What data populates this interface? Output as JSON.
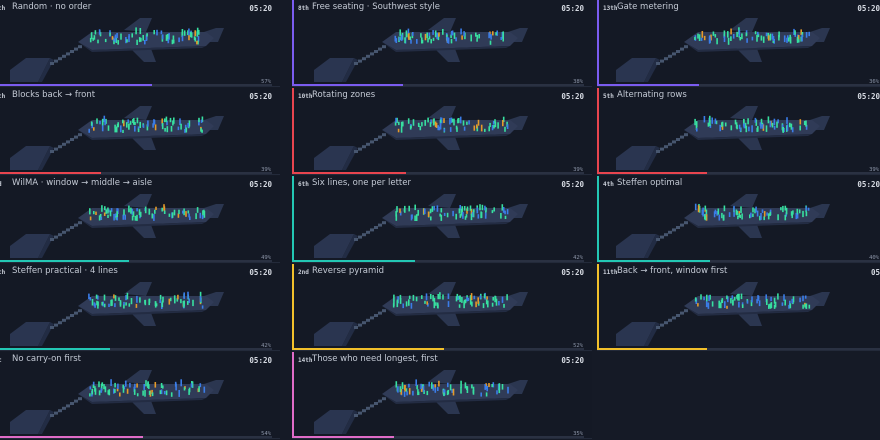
{
  "clock": "05:20",
  "colors": {
    "violet": "#7b5cf0",
    "red": "#e8454f",
    "teal": "#23c7b4",
    "yellow": "#f2c02b",
    "pink": "#e06cc8",
    "passenger_seated": "#37e0a0",
    "passenger_walking": "#3b7de8",
    "passenger_alt": "#e59a2a"
  },
  "panels": [
    {
      "rank": "th",
      "label": "Random · no order",
      "progress_pct": 57,
      "progress_label": "57%",
      "color": "violet"
    },
    {
      "rank": "8th",
      "label": "Free seating · Southwest style",
      "progress_pct": 38,
      "progress_label": "38%",
      "color": "violet"
    },
    {
      "rank": "13th",
      "label": "Gate metering",
      "progress_pct": 36,
      "progress_label": "36%",
      "color": "violet"
    },
    {
      "rank": "th",
      "label": "Blocks back → front",
      "progress_pct": 39,
      "progress_label": "39%",
      "color": "red"
    },
    {
      "rank": "10th",
      "label": "Rotating zones",
      "progress_pct": 39,
      "progress_label": "39%",
      "color": "red"
    },
    {
      "rank": "5th",
      "label": "Alternating rows",
      "progress_pct": 39,
      "progress_label": "39%",
      "color": "red"
    },
    {
      "rank": "d",
      "label": "WilMA · window → middle → aisle",
      "progress_pct": 49,
      "progress_label": "49%",
      "color": "teal"
    },
    {
      "rank": "6th",
      "label": "Six lines, one per letter",
      "progress_pct": 42,
      "progress_label": "42%",
      "color": "teal"
    },
    {
      "rank": "4th",
      "label": "Steffen optimal",
      "progress_pct": 40,
      "progress_label": "40%",
      "color": "teal"
    },
    {
      "rank": "th",
      "label": "Steffen practical · 4 lines",
      "progress_pct": 42,
      "progress_label": "42%",
      "color": "teal"
    },
    {
      "rank": "2nd",
      "label": "Reverse pyramid",
      "progress_pct": 52,
      "progress_label": "52%",
      "color": "yellow"
    },
    {
      "rank": "11th",
      "label": "Back → front, window first",
      "progress_pct": 39,
      "progress_label": "",
      "color": "yellow",
      "clock_override": "05"
    },
    {
      "rank": "t",
      "label": "No carry-on first",
      "progress_pct": 54,
      "progress_label": "54%",
      "color": "pink"
    },
    {
      "rank": "14th",
      "label": "Those who need longest, first",
      "progress_pct": 35,
      "progress_label": "35%",
      "color": "pink"
    }
  ]
}
